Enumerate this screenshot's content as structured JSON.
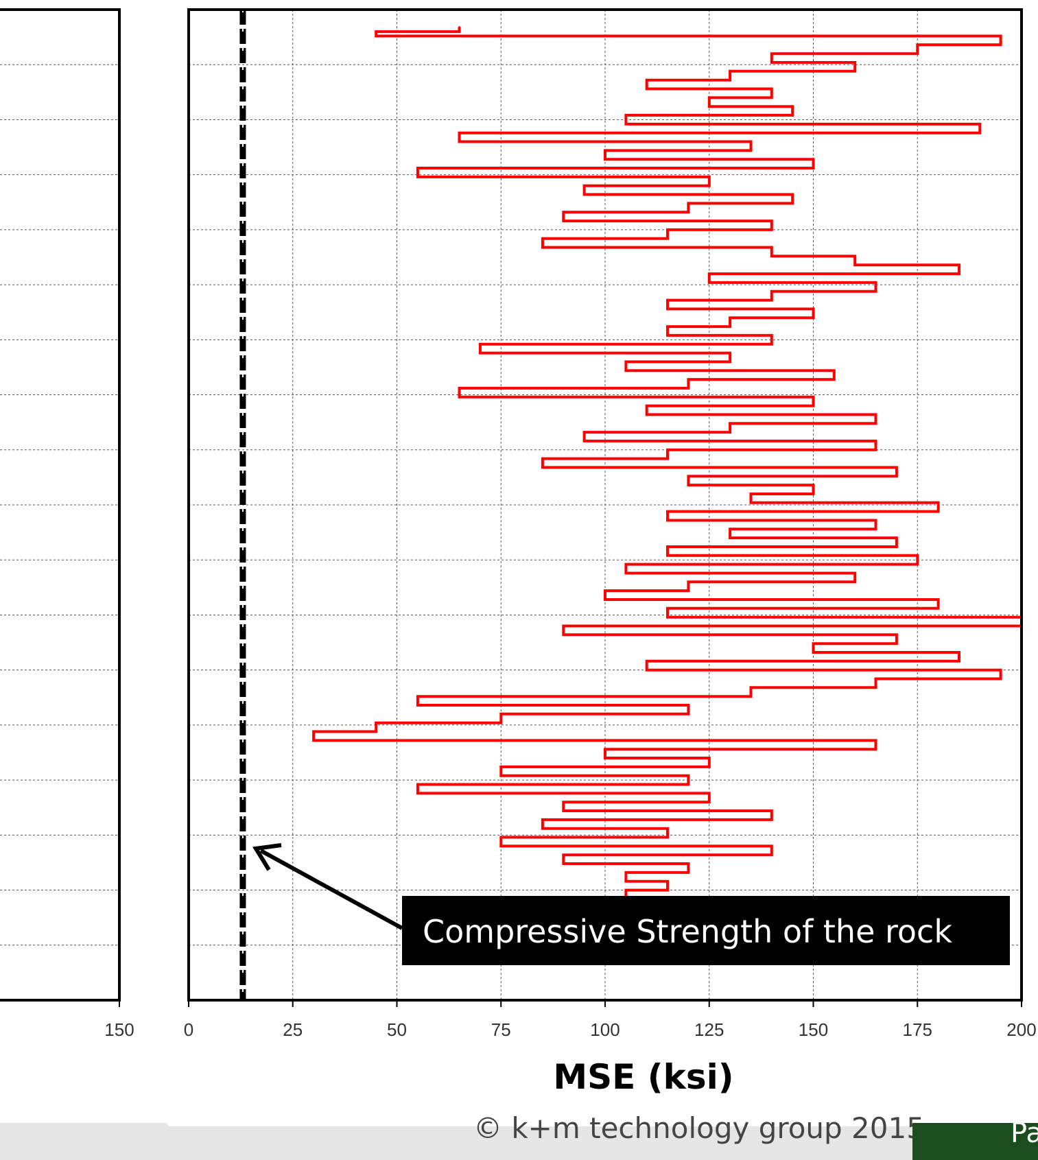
{
  "chart_data": {
    "type": "line",
    "xlabel": "MSE (ksi)",
    "xlim": [
      0,
      200
    ],
    "x_ticks": [
      "0",
      "25",
      "50",
      "75",
      "100",
      "125",
      "150",
      "175",
      "200"
    ],
    "left_panel_tick": "150",
    "grid": true,
    "annotation": "Compressive Strength of the rock",
    "compressive_strength_line": 13,
    "series": [
      {
        "color": "#ff0000",
        "x": [
          65,
          45,
          195,
          175,
          140,
          160,
          130,
          110,
          140,
          125,
          145,
          105,
          190,
          65,
          135,
          100,
          150,
          55,
          125,
          95,
          145,
          120,
          90,
          140,
          115,
          85,
          140,
          160,
          185,
          125,
          165,
          140,
          115,
          150,
          130,
          115,
          140,
          70,
          130,
          105,
          155,
          120,
          65,
          150,
          110,
          165,
          130,
          95,
          165,
          115,
          85,
          170,
          120,
          150,
          135,
          180,
          115,
          165,
          130,
          170,
          115,
          175,
          105,
          160,
          120,
          100,
          180,
          115,
          200,
          90,
          170,
          150,
          185,
          110,
          195,
          165,
          135,
          55,
          120,
          75,
          45,
          30,
          165,
          100,
          125,
          75,
          120,
          55,
          125,
          90,
          140,
          85,
          115,
          75,
          140,
          90,
          120,
          105,
          115,
          105,
          120
        ],
        "y": [
          0.8,
          1.0,
          1.2,
          1.6,
          2.0,
          2.4,
          2.8,
          3.2,
          3.6,
          4.0,
          4.4,
          4.8,
          5.2,
          5.6,
          6.0,
          6.4,
          6.8,
          7.2,
          7.6,
          8.0,
          8.4,
          8.8,
          9.2,
          9.6,
          10.0,
          10.4,
          10.8,
          11.2,
          11.6,
          12.0,
          12.4,
          12.8,
          13.2,
          13.6,
          14.0,
          14.4,
          14.8,
          15.2,
          15.6,
          16.0,
          16.4,
          16.8,
          17.2,
          17.6,
          18.0,
          18.4,
          18.8,
          19.2,
          19.6,
          20.0,
          20.4,
          20.8,
          21.2,
          21.6,
          22.0,
          22.4,
          22.8,
          23.2,
          23.6,
          24.0,
          24.4,
          24.8,
          25.2,
          25.6,
          26.0,
          26.4,
          26.8,
          27.2,
          27.6,
          28.0,
          28.4,
          28.8,
          29.2,
          29.6,
          30.0,
          30.4,
          30.8,
          31.2,
          31.6,
          32.0,
          32.4,
          32.8,
          33.2,
          33.6,
          34.0,
          34.4,
          34.8,
          35.2,
          35.6,
          36.0,
          36.4,
          36.8,
          37.2,
          37.6,
          38.0,
          38.4,
          38.8,
          39.2,
          39.6,
          40.0,
          40.4
        ],
        "ylim": [
          45,
          0
        ],
        "y_grid_count": 18
      }
    ]
  },
  "footer": {
    "copyright": "© k+m technology group 2015",
    "side_text": "Pa"
  }
}
